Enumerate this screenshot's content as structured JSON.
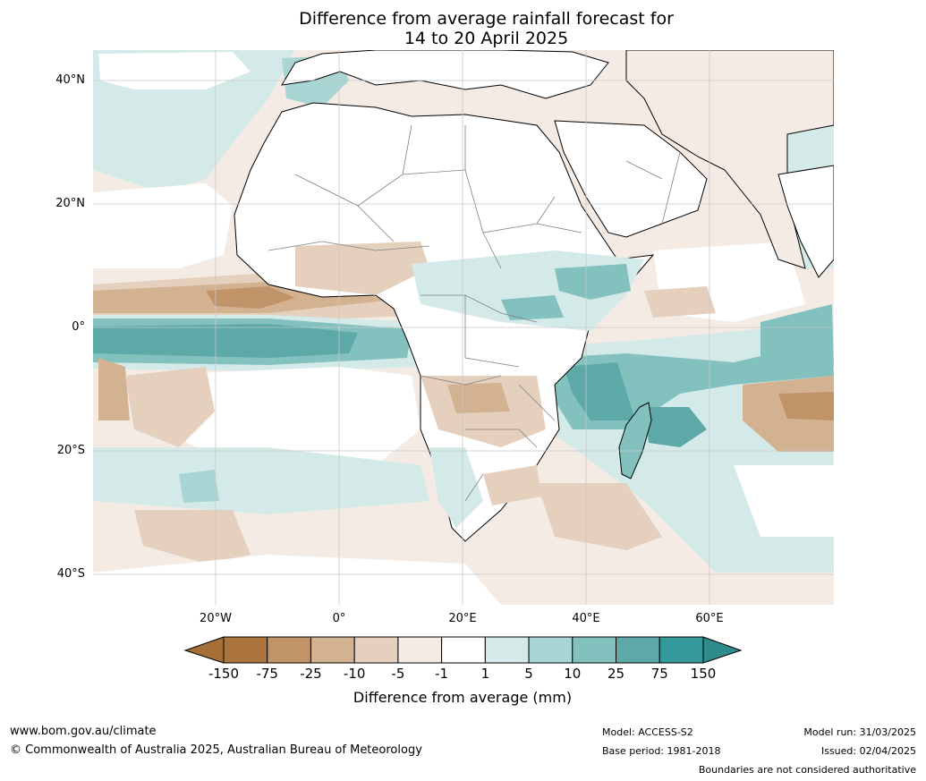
{
  "title_line1": "Difference from average rainfall forecast for",
  "title_line2": "14 to 20 April 2025",
  "lat_labels": [
    "40°N",
    "20°N",
    "0°",
    "20°S",
    "40°S"
  ],
  "lon_labels": [
    "20°W",
    "0°",
    "20°E",
    "40°E",
    "60°E"
  ],
  "colorbar": {
    "title": "Difference from average (mm)",
    "labels": [
      "-150",
      "-75",
      "-25",
      "-10",
      "-5",
      "-1",
      "1",
      "5",
      "10",
      "25",
      "75",
      "150"
    ],
    "colors": {
      "under": "#a66f37",
      "bins": [
        "#ab743d",
        "#c19369",
        "#d3b291",
        "#e4d0bd",
        "#f4ebe5",
        "#ffffff",
        "#d4eae8",
        "#a9d6d4",
        "#83c1bf",
        "#5da9a7",
        "#33999a"
      ],
      "over": "#2e8c8c"
    }
  },
  "footer": {
    "site": "www.bom.gov.au/climate",
    "copyright": "© Commonwealth of Australia 2025, Australian Bureau of Meteorology",
    "model": "Model: ACCESS-S2",
    "base_period": "Base period: 1981-2018",
    "model_run": "Model run: 31/03/2025",
    "issued": "Issued: 02/04/2025",
    "boundaries": "Boundaries are not considered authoritative"
  }
}
